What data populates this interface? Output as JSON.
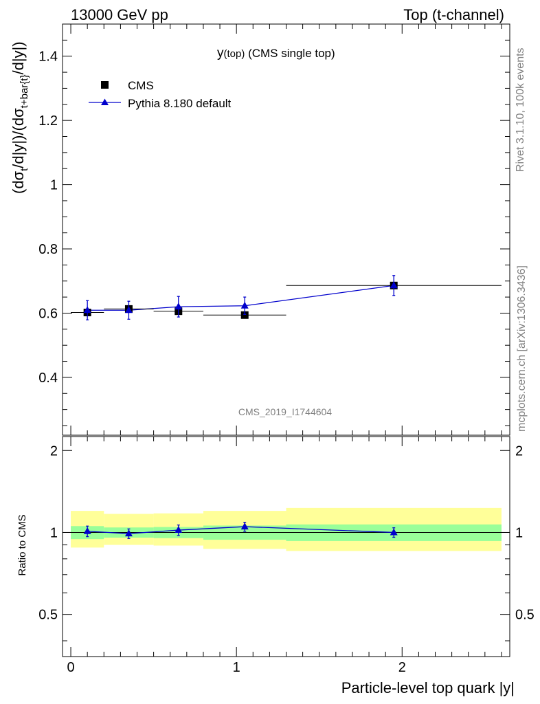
{
  "header": {
    "left": "13000 GeV pp",
    "right": "Top (t-channel)"
  },
  "side": {
    "rivet": "Rivet 3.1.10,  100k events",
    "mcplots": "mcplots.cern.ch [arXiv:1306.3436]"
  },
  "chart_data": [
    {
      "type": "scatter",
      "title": {
        "main": "y",
        "sub": "(top)",
        "rest": " (CMS single top)"
      },
      "ylabel": "(dσ_t/d|y|)/(dσ_t+bar(t)/d|y|)",
      "watermark": "CMS_2019_I1744604",
      "xlim": [
        -0.05,
        2.65
      ],
      "ylim": [
        0.22,
        1.5
      ],
      "yticks": [
        0.4,
        0.6,
        0.8,
        1,
        1.2,
        1.4
      ],
      "ytick_labels": [
        "0.4",
        "0.6",
        "0.8",
        "1",
        "1.2",
        "1.4"
      ],
      "legend": {
        "position": "top-left"
      },
      "series": [
        {
          "name": "CMS",
          "marker": "square",
          "color": "#000000",
          "x": [
            0.1,
            0.35,
            0.65,
            1.05,
            1.95
          ],
          "y": [
            0.602,
            0.613,
            0.606,
            0.594,
            0.686
          ],
          "xerr_lo": [
            0.1,
            0.15,
            0.15,
            0.25,
            0.65
          ],
          "xerr_hi": [
            0.1,
            0.15,
            0.15,
            0.25,
            0.65
          ]
        },
        {
          "name": "Pythia 8.180 default",
          "marker": "triangle",
          "color": "#0000cc",
          "x": [
            0.1,
            0.35,
            0.65,
            1.05,
            1.95
          ],
          "y": [
            0.609,
            0.609,
            0.62,
            0.623,
            0.686
          ],
          "yerr": [
            0.03,
            0.028,
            0.032,
            0.027,
            0.031
          ]
        }
      ]
    },
    {
      "type": "line",
      "ylabel": "Ratio to CMS",
      "xlabel": "Particle-level top quark |y|",
      "xlim": [
        -0.05,
        2.65
      ],
      "ylim": [
        0.35,
        2.25
      ],
      "yscale": "log",
      "xticks": [
        0,
        1,
        2
      ],
      "xtick_labels": [
        "0",
        "1",
        "2"
      ],
      "yticks": [
        0.5,
        1,
        2
      ],
      "ytick_labels": [
        "0.5",
        "1",
        "2"
      ],
      "bins": [
        [
          0.0,
          0.2
        ],
        [
          0.2,
          0.5
        ],
        [
          0.5,
          0.8
        ],
        [
          0.8,
          1.3
        ],
        [
          1.3,
          2.6
        ]
      ],
      "band_inner": [
        [
          0.945,
          1.055
        ],
        [
          0.957,
          1.043
        ],
        [
          0.953,
          1.047
        ],
        [
          0.94,
          1.06
        ],
        [
          0.93,
          1.07
        ]
      ],
      "band_outer": [
        [
          0.88,
          1.2
        ],
        [
          0.9,
          1.17
        ],
        [
          0.895,
          1.175
        ],
        [
          0.87,
          1.2
        ],
        [
          0.855,
          1.23
        ]
      ],
      "band_colors": {
        "inner": "#99ff99",
        "outer": "#ffff99"
      },
      "series": [
        {
          "name": "Pythia 8.180 default",
          "color": "#0000cc",
          "x": [
            0.1,
            0.35,
            0.65,
            1.05,
            1.95
          ],
          "y": [
            1.01,
            0.99,
            1.02,
            1.05,
            1.0
          ],
          "yerr": [
            0.045,
            0.04,
            0.045,
            0.04,
            0.04
          ]
        }
      ]
    }
  ]
}
